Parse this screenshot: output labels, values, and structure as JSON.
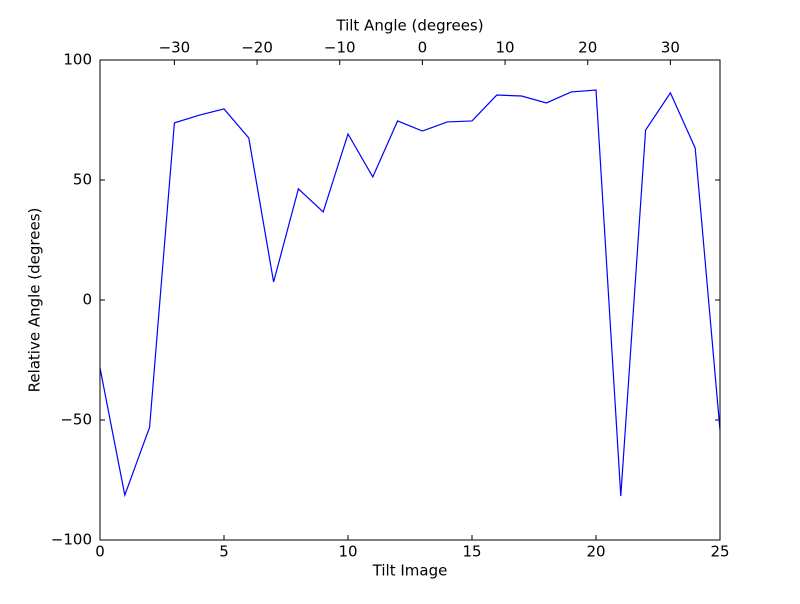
{
  "chart_data": {
    "type": "line",
    "xlabel": "Tilt Image",
    "ylabel": "Relative Angle (degrees)",
    "x2label": "Tilt Angle (degrees)",
    "x": [
      0,
      1,
      2,
      3,
      4,
      5,
      6,
      7,
      8,
      9,
      10,
      11,
      12,
      13,
      14,
      15,
      16,
      17,
      18,
      19,
      20,
      21,
      22,
      23,
      24,
      25
    ],
    "series": [
      {
        "color": "#0000ff",
        "values": [
          -28.3,
          -81.3,
          -53,
          73.8,
          77,
          79.6,
          67.5,
          7.5,
          46.3,
          36.7,
          69.2,
          51.3,
          74.6,
          70.4,
          74.2,
          74.6,
          85.4,
          85,
          82.1,
          86.7,
          87.5,
          -81.7,
          70.8,
          86.3,
          63.3,
          -54.2
        ]
      }
    ],
    "xlim": [
      0,
      25
    ],
    "xticks": [
      0,
      5,
      10,
      15,
      20,
      25
    ],
    "ylim": [
      -100,
      100
    ],
    "yticks": [
      {
        "value": -100,
        "label": "−100"
      },
      {
        "value": -50,
        "label": "−50"
      },
      0,
      50,
      100
    ],
    "x2lim": [
      -39,
      36
    ],
    "x2ticks": [
      {
        "value": -30,
        "label": "−30"
      },
      {
        "value": -20,
        "label": "−20"
      },
      {
        "value": -10,
        "label": "−10"
      },
      0,
      10,
      20,
      30
    ],
    "grid": false
  }
}
